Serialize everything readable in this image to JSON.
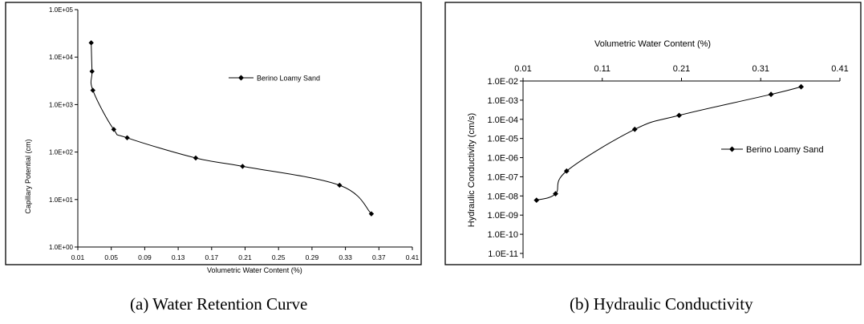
{
  "captions": {
    "a": "(a)  Water Retention Curve",
    "b": "(b) Hydraulic Conductivity"
  },
  "chart_data": [
    {
      "type": "scatter",
      "xlabel": "Volumetric Water Content (%)",
      "ylabel": "Capillary Potential (cm)",
      "x_ticks": [
        "0.01",
        "0.05",
        "0.09",
        "0.13",
        "0.17",
        "0.21",
        "0.25",
        "0.29",
        "0.33",
        "0.37",
        "0.41"
      ],
      "y_ticks": [
        "1.0E+00",
        "1.0E+01",
        "1.0E+02",
        "1.0E+03",
        "1.0E+04",
        "1.0E+05"
      ],
      "xlim": [
        0.01,
        0.41
      ],
      "ylim": [
        1,
        100000
      ],
      "y_scale": "log",
      "legend_position": "top-right",
      "series": [
        {
          "name": "Berino Loamy Sand",
          "marker": "diamond",
          "line": "smoothed",
          "points": [
            [
              0.026,
              20000
            ],
            [
              0.027,
              5000
            ],
            [
              0.028,
              2000
            ],
            [
              0.053,
              300
            ],
            [
              0.069,
              200
            ],
            [
              0.151,
              75
            ],
            [
              0.207,
              50
            ],
            [
              0.323,
              20
            ],
            [
              0.361,
              5
            ]
          ]
        }
      ]
    },
    {
      "type": "scatter",
      "xlabel": "Volumetric Water Content (%)",
      "ylabel": "Hydraulic Conductivity (cm/s)",
      "x_axis_position": "top",
      "x_ticks": [
        "0.01",
        "0.11",
        "0.21",
        "0.31",
        "0.41"
      ],
      "y_ticks": [
        "1.0E-02",
        "1.0E-03",
        "1.0E-04",
        "1.0E-05",
        "1.0E-06",
        "1.0E-07",
        "1.0E-08",
        "1.0E-09",
        "1.0E-10",
        "1.0E-11"
      ],
      "xlim": [
        0.01,
        0.41
      ],
      "ylim": [
        1e-11,
        0.01
      ],
      "y_scale": "log",
      "legend_position": "right",
      "series": [
        {
          "name": "Berino Loamy Sand",
          "marker": "diamond",
          "line": "smoothed",
          "points": [
            [
              0.027,
              6e-09
            ],
            [
              0.051,
              1.3e-08
            ],
            [
              0.065,
              2e-07
            ],
            [
              0.151,
              3e-05
            ],
            [
              0.207,
              0.00016
            ],
            [
              0.323,
              0.002
            ],
            [
              0.361,
              0.005
            ]
          ]
        }
      ]
    }
  ]
}
